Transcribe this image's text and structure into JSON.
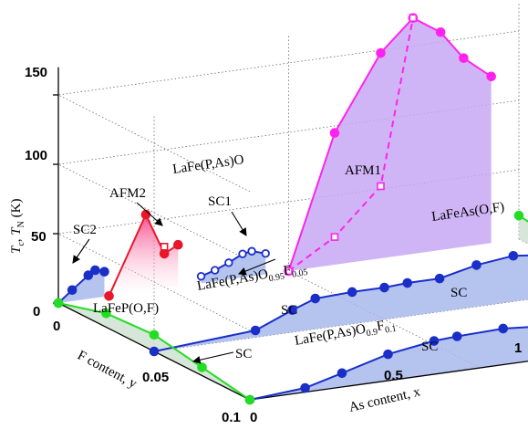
{
  "chart_data": {
    "type": "3d-line",
    "title": "",
    "axes": {
      "x": {
        "label": "As content, x",
        "ticks": [
          "0",
          "0.5",
          "1"
        ],
        "range": [
          0,
          1
        ]
      },
      "y": {
        "label": "F content, y",
        "ticks": [
          "0",
          "0.05",
          "0.1"
        ],
        "range": [
          0,
          0.1
        ]
      },
      "z": {
        "label": "Tc, TN (K)",
        "label_symbols": [
          "T",
          "c",
          "T",
          "N",
          "(K)"
        ],
        "ticks": [
          "0",
          "50",
          "100",
          "150"
        ],
        "range": [
          0,
          170
        ]
      }
    },
    "grid": true,
    "colors": {
      "sc_line": "#1a2fc8",
      "sc_fill": "#a8b8ec",
      "afm1_line": "#ff22ee",
      "afm1_fill": "#c8a8f4",
      "afm2_line": "#e8172a",
      "afm2_fill": "#f8b0d0",
      "green_line": "#22dd22",
      "green_fill": "#cfe2d2"
    },
    "series": [
      {
        "name": "AFM1",
        "marker": "filled-circle",
        "x": [
          0.5,
          0.6,
          0.7,
          0.77,
          0.83,
          0.88,
          0.94
        ],
        "y": [
          0,
          0,
          0,
          0,
          0,
          0,
          0
        ],
        "z": [
          0,
          95,
          148,
          170,
          157,
          136,
          120
        ]
      },
      {
        "name": "AFM1 (dashed)",
        "marker": "open-square",
        "x": [
          0.5,
          0.6,
          0.7,
          0.77
        ],
        "y": [
          0,
          0,
          0,
          0
        ],
        "z": [
          0,
          20,
          52,
          170
        ]
      },
      {
        "name": "AFM2",
        "marker": "filled-circle",
        "x": [
          0.11,
          0.19,
          0.23,
          0.26
        ],
        "y": [
          0,
          0,
          0,
          0
        ],
        "z": [
          0,
          55,
          25,
          30
        ]
      },
      {
        "name": "AFM2 (open)",
        "marker": "open-square",
        "x": [
          0.23
        ],
        "y": [
          0
        ],
        "z": [
          30
        ]
      },
      {
        "name": "SC2",
        "marker": "filled-circle",
        "x": [
          0,
          0.03,
          0.065,
          0.08,
          0.1
        ],
        "y": [
          0,
          0,
          0,
          0,
          0
        ],
        "z": [
          0,
          8,
          17,
          20,
          18
        ]
      },
      {
        "name": "SC1",
        "marker": "open-circle",
        "x": [
          0.31,
          0.34,
          0.37,
          0.4,
          0.42,
          0.45
        ],
        "y": [
          0,
          0,
          0,
          0,
          0,
          0
        ],
        "z": [
          5,
          8,
          12,
          17,
          18,
          15
        ]
      },
      {
        "name": "LaFe(P,As)O0.95F0.05",
        "marker": "filled-circle",
        "x": [
          0,
          0.22,
          0.3,
          0.35,
          0.43,
          0.5,
          0.55,
          0.62,
          0.7,
          0.78,
          0.88,
          1
        ],
        "y": [
          0.05,
          0.05,
          0.05,
          0.05,
          0.05,
          0.05,
          0.05,
          0.05,
          0.05,
          0.05,
          0.05,
          0.05
        ],
        "z": [
          0,
          5,
          16,
          22,
          23,
          23,
          24,
          24,
          30,
          33,
          29,
          30
        ]
      },
      {
        "name": "LaFe(P,As)O0.9F0.1",
        "marker": "filled-circle",
        "x": [
          0,
          0.12,
          0.2,
          0.3,
          0.4,
          0.45,
          0.55,
          0.66,
          0.78,
          0.9,
          1
        ],
        "y": [
          0.1,
          0.1,
          0.1,
          0.1,
          0.1,
          0.1,
          0.1,
          0.1,
          0.1,
          0.1,
          0.1
        ],
        "z": [
          0,
          3,
          10,
          19,
          24,
          25,
          26,
          23,
          26,
          23,
          25
        ]
      },
      {
        "name": "LaFeP(O,F)",
        "marker": "filled-circle",
        "x": [
          0,
          0,
          0,
          0,
          0
        ],
        "y": [
          0,
          0.025,
          0.05,
          0.075,
          0.1
        ],
        "z": [
          0,
          10,
          12,
          6,
          0
        ]
      },
      {
        "name": "LaFeAs(O,F)",
        "marker": "filled-circle",
        "x": [
          1,
          1,
          1
        ],
        "y": [
          0,
          0.05,
          0.1
        ],
        "z": [
          17,
          8,
          6
        ]
      }
    ],
    "annotations": {
      "compound_top": "LaFe(P,As)O",
      "compound_left": "LaFeP(O,F)",
      "compound_right": "LaFeAs(O,F)",
      "slice_mid": {
        "base": "LaFe(P,As)O",
        "sub1": "0.95",
        "mid": "F",
        "sub2": "0.05"
      },
      "slice_front": {
        "base": "LaFe(P,As)O",
        "sub1": "0.9",
        "mid": "F",
        "sub2": "0.1"
      },
      "afm1": "AFM1",
      "afm2": "AFM2",
      "sc1": "SC1",
      "sc2": "SC2",
      "sc": "SC"
    }
  }
}
